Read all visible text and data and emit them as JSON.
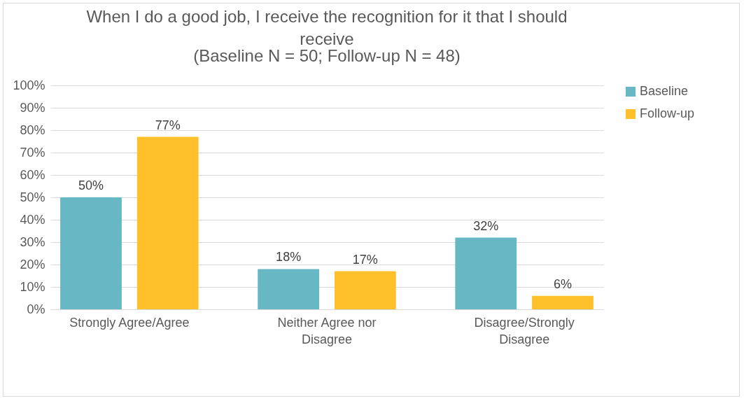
{
  "chart_data": {
    "type": "bar",
    "title": "When I do a good job, I receive the recognition for it that I should receive",
    "subtitle": "(Baseline N = 50; Follow-up N = 48)",
    "categories": [
      "Strongly Agree/Agree",
      "Neither Agree nor Disagree",
      "Disagree/Strongly Disagree"
    ],
    "series": [
      {
        "name": "Baseline",
        "color": "#67b7c4",
        "values": [
          50,
          18,
          32
        ],
        "value_labels": [
          "50%",
          "18%",
          "32%"
        ]
      },
      {
        "name": "Follow-up",
        "color": "#ffc12b",
        "values": [
          77,
          17,
          6
        ],
        "value_labels": [
          "77%",
          "17%",
          "6%"
        ]
      }
    ],
    "ylim": [
      0,
      100
    ],
    "yticks": [
      {
        "value": 0,
        "label": "0%"
      },
      {
        "value": 10,
        "label": "10%"
      },
      {
        "value": 20,
        "label": "20%"
      },
      {
        "value": 30,
        "label": "30%"
      },
      {
        "value": 40,
        "label": "40%"
      },
      {
        "value": 50,
        "label": "50%"
      },
      {
        "value": 60,
        "label": "60%"
      },
      {
        "value": 70,
        "label": "70%"
      },
      {
        "value": 80,
        "label": "80%"
      },
      {
        "value": 90,
        "label": "90%"
      },
      {
        "value": 100,
        "label": "100%"
      }
    ],
    "grid": "y",
    "legend": "right"
  }
}
